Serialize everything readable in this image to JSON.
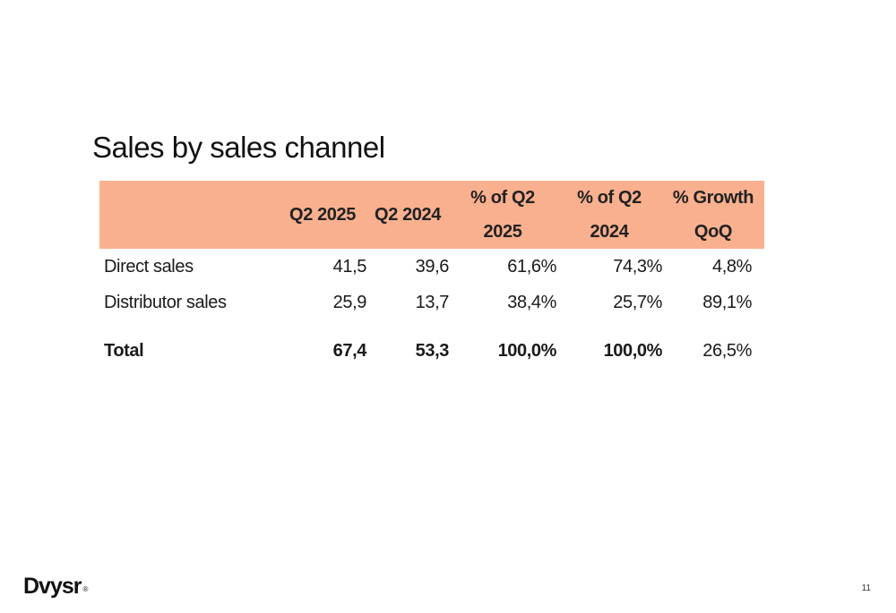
{
  "slide": {
    "title": "Sales by sales channel",
    "page_number": "11",
    "logo_text": "Dvysr",
    "logo_mark": "®"
  },
  "table": {
    "headers": {
      "label": "",
      "q2_2025": "Q2 2025",
      "q2_2024": "Q2 2024",
      "pct_q2_2025_line1": "% of Q2",
      "pct_q2_2025_line2": "2025",
      "pct_q2_2024_line1": "% of Q2",
      "pct_q2_2024_line2": "2024",
      "growth_line1": "% Growth",
      "growth_line2": "QoQ"
    },
    "rows": [
      {
        "label": "Direct sales",
        "q2_2025": "41,5",
        "q2_2024": "39,6",
        "pct_q2_2025": "61,6%",
        "pct_q2_2024": "74,3%",
        "growth": "4,8%"
      },
      {
        "label": "Distributor sales",
        "q2_2025": "25,9",
        "q2_2024": "13,7",
        "pct_q2_2025": "38,4%",
        "pct_q2_2024": "25,7%",
        "growth": "89,1%"
      }
    ],
    "total": {
      "label": "Total",
      "q2_2025": "67,4",
      "q2_2024": "53,3",
      "pct_q2_2025": "100,0%",
      "pct_q2_2024": "100,0%",
      "growth": "26,5%"
    },
    "colors": {
      "header_bg": "#f9b08f"
    }
  }
}
